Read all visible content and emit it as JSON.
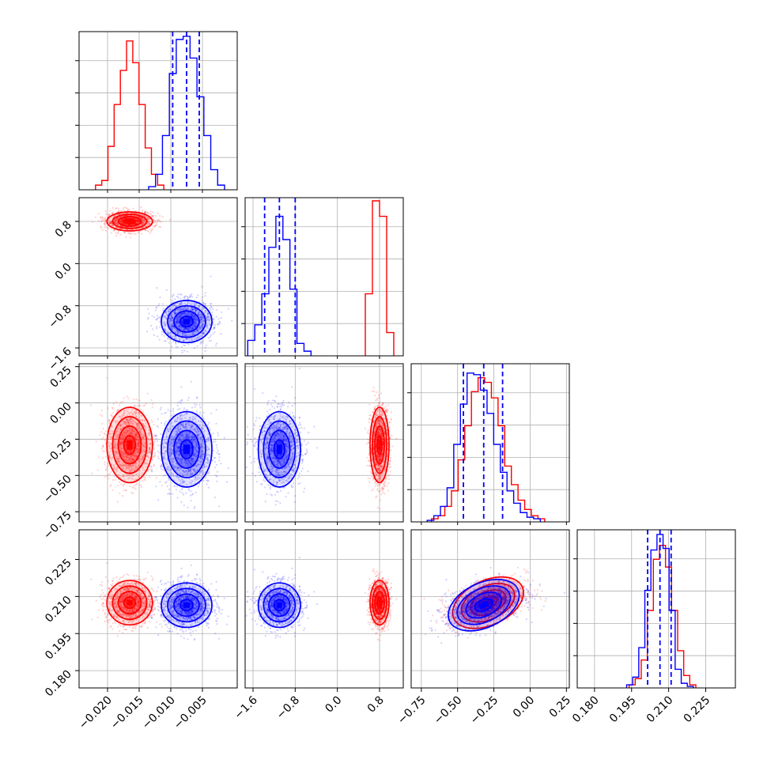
{
  "chart_data": {
    "type": "corner",
    "grid": true,
    "series": [
      {
        "color": "#ff0000",
        "mean": [
          -0.0165,
          0.8,
          -0.29,
          0.2075
        ],
        "std": [
          0.0018,
          0.09,
          0.13,
          0.0045
        ],
        "hist_shape": [
          [
            0.03,
            0.06,
            0.28,
            0.55,
            0.77,
            0.96,
            0.82,
            0.55,
            0.27,
            0.1,
            0.03
          ],
          [
            0.4,
            1.0,
            0.9,
            0.15
          ],
          [
            0.02,
            0.04,
            0.1,
            0.2,
            0.4,
            0.62,
            0.84,
            0.93,
            0.9,
            0.8,
            0.62,
            0.36,
            0.24,
            0.14,
            0.08,
            0.04,
            0.02
          ],
          [
            0.02,
            0.06,
            0.18,
            0.5,
            0.83,
            0.92,
            0.78,
            0.5,
            0.24,
            0.08,
            0.02
          ]
        ]
      },
      {
        "color": "#0000ff",
        "mean": [
          -0.0075,
          -1.1,
          -0.32,
          0.2065
        ],
        "std": [
          0.002,
          0.2,
          0.13,
          0.0045
        ],
        "quantiles": [
          [
            -0.0097,
            -0.0075,
            -0.0055
          ],
          [
            -1.38,
            -1.1,
            -0.8
          ],
          [
            -0.46,
            -0.32,
            -0.19
          ],
          [
            0.2015,
            0.2065,
            0.211
          ]
        ],
        "hist_shape": [
          [
            0.02,
            0.1,
            0.35,
            0.75,
            0.97,
            0.99,
            0.85,
            0.6,
            0.35,
            0.13,
            0.03
          ],
          [
            0.1,
            0.2,
            0.4,
            0.7,
            0.9,
            0.75,
            0.43,
            0.08,
            0.03
          ],
          [
            0.01,
            0.04,
            0.1,
            0.22,
            0.5,
            0.76,
            0.96,
            0.95,
            0.85,
            0.7,
            0.5,
            0.32,
            0.2,
            0.12,
            0.06,
            0.03,
            0.02
          ],
          [
            0.02,
            0.07,
            0.26,
            0.63,
            0.89,
            0.99,
            0.9,
            0.5,
            0.12,
            0.03,
            0.01
          ]
        ]
      }
    ],
    "axes": [
      {
        "range": [
          -0.0245,
          0.0005
        ],
        "ticks": [
          "−0.020",
          "−0.015",
          "−0.010",
          "−0.005"
        ],
        "tick_values": [
          -0.02,
          -0.015,
          -0.01,
          -0.005
        ]
      },
      {
        "range": [
          -1.75,
          1.25
        ],
        "ticks": [
          "−1.6",
          "−0.8",
          "0.0",
          "0.8"
        ],
        "tick_values": [
          -1.6,
          -0.8,
          0.0,
          0.8
        ]
      },
      {
        "range": [
          -0.82,
          0.27
        ],
        "ticks": [
          "−0.75",
          "−0.50",
          "−0.25",
          "0.00",
          "0.25"
        ],
        "tick_values": [
          -0.75,
          -0.5,
          -0.25,
          0.0,
          0.25
        ]
      },
      {
        "range": [
          0.173,
          0.237
        ],
        "ticks": [
          "0.180",
          "0.195",
          "0.210",
          "0.225"
        ],
        "tick_values": [
          0.18,
          0.195,
          0.21,
          0.225
        ]
      }
    ],
    "title": "",
    "xlabel": "",
    "ylabel": ""
  }
}
